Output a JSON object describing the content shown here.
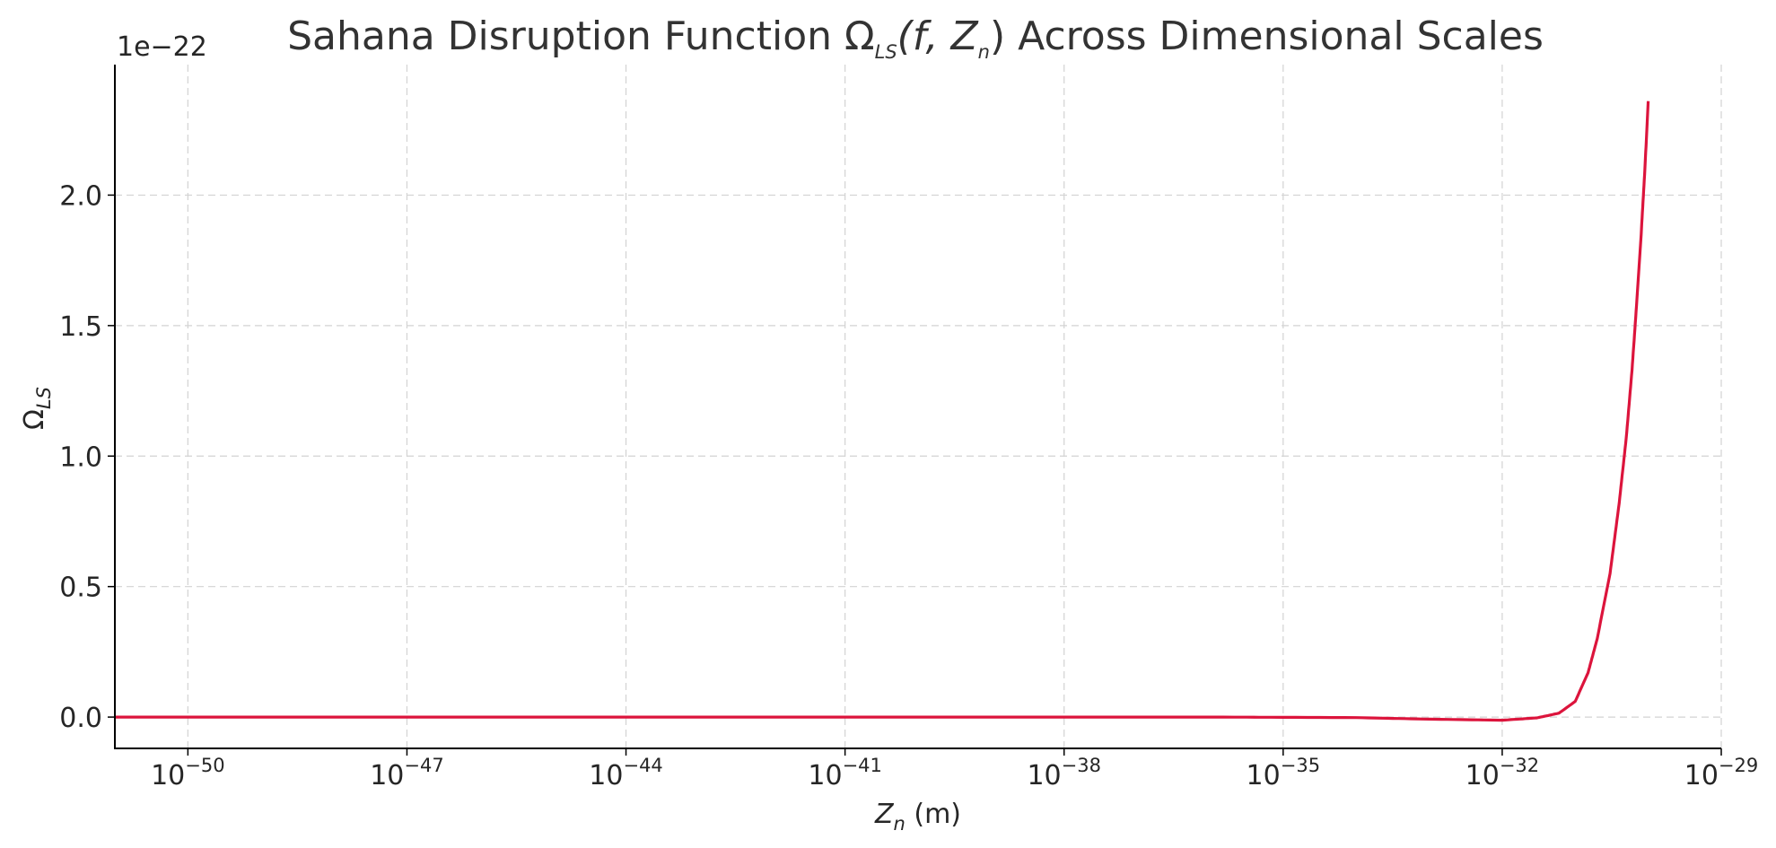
{
  "chart_data": {
    "type": "line",
    "title_parts": {
      "prefix": "Sahana Disruption Function Ω",
      "subscript": "LS",
      "args": "(f, Z",
      "args_sub": "n",
      "suffix": ") Across Dimensional Scales"
    },
    "xlabel_parts": {
      "symbol": "Z",
      "subscript": "n",
      "unit": " (m)"
    },
    "ylabel_parts": {
      "symbol": "Ω",
      "subscript": "LS"
    },
    "y_offset_label": "1e−22",
    "x_scale": "log",
    "x_tick_base": "10",
    "x_tick_exponents": [
      "−50",
      "−47",
      "−44",
      "−41",
      "−38",
      "−35",
      "−32",
      "−29"
    ],
    "xlim": [
      1e-51,
      1e-29
    ],
    "y_ticks": [
      "0.0",
      "0.5",
      "1.0",
      "1.5",
      "2.0"
    ],
    "y_tick_values": [
      0,
      0.5,
      1.0,
      1.5,
      2.0
    ],
    "ylim": [
      -0.12,
      2.5
    ],
    "y_multiplier": 1e-22,
    "grid": true,
    "series": [
      {
        "color": "#dc143c",
        "x": [
          1e-51,
          1e-48,
          1e-45,
          1e-42,
          1e-39,
          1e-36,
          1e-34,
          1e-33,
          1e-32,
          3e-32,
          6e-32,
          1e-31,
          1.5e-31,
          2e-31,
          3e-31,
          4e-31,
          5e-31,
          6e-31,
          7e-31,
          8e-31,
          9e-31,
          1e-30
        ],
        "y": [
          0.0,
          0.0,
          0.0,
          0.0,
          0.0,
          0.0,
          -0.002,
          -0.008,
          -0.012,
          -0.003,
          0.015,
          0.06,
          0.17,
          0.3,
          0.55,
          0.82,
          1.07,
          1.33,
          1.6,
          1.85,
          2.1,
          2.36
        ]
      }
    ]
  }
}
